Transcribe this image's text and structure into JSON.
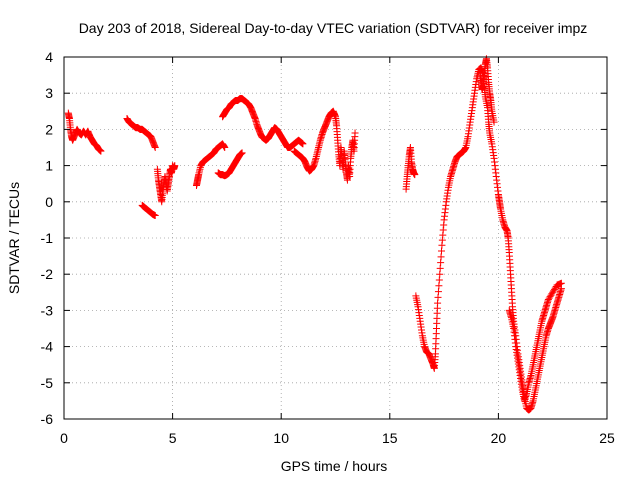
{
  "chart_data": {
    "type": "scatter",
    "title": "Day 203 of 2018, Sidereal Day-to-day VTEC variation (SDTVAR) for receiver impz",
    "xlabel": "GPS time / hours",
    "ylabel": "SDTVAR / TECUs",
    "xlim": [
      0,
      25
    ],
    "ylim": [
      -6,
      4
    ],
    "xticks": [
      "0",
      "5",
      "10",
      "15",
      "20",
      "25"
    ],
    "yticks": [
      "-6",
      "-5",
      "-4",
      "-3",
      "-2",
      "-1",
      "0",
      "1",
      "2",
      "3",
      "4"
    ],
    "grid": true,
    "marker": "+",
    "color": "#ff0000",
    "series": [
      {
        "name": "SDTVAR",
        "segments": [
          [
            [
              0.2,
              2.45
            ],
            [
              0.25,
              2.3
            ],
            [
              0.3,
              2.0
            ],
            [
              0.35,
              1.8
            ],
            [
              0.4,
              1.7
            ],
            [
              0.5,
              1.85
            ],
            [
              0.6,
              2.0
            ],
            [
              0.7,
              1.9
            ],
            [
              0.8,
              1.85
            ],
            [
              0.9,
              1.95
            ],
            [
              1.0,
              1.85
            ],
            [
              1.1,
              1.95
            ],
            [
              1.2,
              1.8
            ],
            [
              1.3,
              1.7
            ],
            [
              1.4,
              1.6
            ],
            [
              1.5,
              1.55
            ],
            [
              1.6,
              1.45
            ],
            [
              1.7,
              1.4
            ]
          ],
          [
            [
              2.9,
              2.3
            ],
            [
              3.0,
              2.2
            ],
            [
              3.1,
              2.15
            ],
            [
              3.2,
              2.1
            ],
            [
              3.3,
              2.05
            ],
            [
              3.4,
              2.05
            ],
            [
              3.5,
              2.0
            ],
            [
              3.6,
              2.0
            ],
            [
              3.7,
              1.95
            ],
            [
              3.8,
              1.9
            ],
            [
              3.9,
              1.85
            ],
            [
              4.0,
              1.8
            ],
            [
              4.1,
              1.65
            ],
            [
              4.2,
              1.5
            ]
          ],
          [
            [
              3.6,
              -0.1
            ],
            [
              3.7,
              -0.15
            ],
            [
              3.8,
              -0.2
            ],
            [
              3.9,
              -0.25
            ],
            [
              4.0,
              -0.3
            ],
            [
              4.1,
              -0.35
            ],
            [
              4.2,
              -0.38
            ]
          ],
          [
            [
              4.3,
              0.9
            ],
            [
              4.35,
              0.6
            ],
            [
              4.4,
              0.4
            ],
            [
              4.45,
              0.2
            ],
            [
              4.5,
              0.0
            ],
            [
              4.55,
              0.3
            ],
            [
              4.6,
              0.5
            ],
            [
              4.65,
              0.7
            ],
            [
              4.7,
              0.5
            ],
            [
              4.75,
              0.3
            ],
            [
              4.8,
              0.5
            ],
            [
              4.85,
              0.7
            ],
            [
              4.9,
              0.9
            ],
            [
              4.95,
              0.8
            ],
            [
              5.0,
              1.0
            ],
            [
              5.05,
              0.9
            ],
            [
              5.1,
              1.0
            ]
          ],
          [
            [
              6.1,
              0.45
            ],
            [
              6.15,
              0.6
            ],
            [
              6.2,
              0.75
            ],
            [
              6.3,
              1.0
            ],
            [
              6.4,
              1.1
            ],
            [
              6.5,
              1.15
            ],
            [
              6.6,
              1.2
            ],
            [
              6.7,
              1.25
            ],
            [
              6.8,
              1.3
            ],
            [
              6.9,
              1.35
            ],
            [
              7.0,
              1.45
            ],
            [
              7.1,
              1.5
            ],
            [
              7.2,
              1.55
            ],
            [
              7.3,
              1.6
            ],
            [
              7.4,
              1.5
            ]
          ],
          [
            [
              7.1,
              0.8
            ],
            [
              7.2,
              0.75
            ],
            [
              7.3,
              0.75
            ],
            [
              7.4,
              0.72
            ],
            [
              7.5,
              0.75
            ],
            [
              7.6,
              0.8
            ],
            [
              7.7,
              0.9
            ],
            [
              7.8,
              1.0
            ],
            [
              7.9,
              1.1
            ],
            [
              8.0,
              1.2
            ],
            [
              8.1,
              1.3
            ],
            [
              8.2,
              1.35
            ]
          ],
          [
            [
              7.3,
              2.35
            ],
            [
              7.4,
              2.45
            ],
            [
              7.5,
              2.55
            ],
            [
              7.6,
              2.6
            ],
            [
              7.7,
              2.7
            ],
            [
              7.8,
              2.75
            ],
            [
              7.9,
              2.8
            ],
            [
              8.0,
              2.8
            ],
            [
              8.1,
              2.85
            ],
            [
              8.2,
              2.85
            ],
            [
              8.3,
              2.8
            ],
            [
              8.4,
              2.75
            ],
            [
              8.5,
              2.7
            ],
            [
              8.6,
              2.6
            ],
            [
              8.7,
              2.45
            ],
            [
              8.8,
              2.3
            ],
            [
              8.9,
              2.1
            ],
            [
              9.0,
              1.95
            ],
            [
              9.1,
              1.8
            ],
            [
              9.2,
              1.75
            ],
            [
              9.3,
              1.7
            ],
            [
              9.4,
              1.75
            ],
            [
              9.5,
              1.85
            ],
            [
              9.6,
              1.95
            ],
            [
              9.7,
              2.05
            ],
            [
              9.8,
              2.0
            ],
            [
              9.9,
              1.9
            ],
            [
              10.0,
              1.8
            ],
            [
              10.1,
              1.7
            ],
            [
              10.2,
              1.6
            ],
            [
              10.3,
              1.5
            ],
            [
              10.4,
              1.5
            ],
            [
              10.5,
              1.55
            ],
            [
              10.6,
              1.6
            ],
            [
              10.7,
              1.65
            ],
            [
              10.8,
              1.7
            ],
            [
              10.9,
              1.65
            ],
            [
              11.0,
              1.6
            ]
          ],
          [
            [
              10.6,
              1.4
            ],
            [
              10.7,
              1.35
            ],
            [
              10.8,
              1.3
            ],
            [
              10.9,
              1.25
            ],
            [
              11.0,
              1.2
            ],
            [
              11.1,
              1.1
            ],
            [
              11.2,
              0.95
            ],
            [
              11.3,
              0.85
            ],
            [
              11.4,
              0.9
            ],
            [
              11.5,
              1.0
            ],
            [
              11.6,
              1.2
            ],
            [
              11.7,
              1.45
            ],
            [
              11.8,
              1.7
            ],
            [
              11.9,
              1.9
            ],
            [
              12.0,
              2.05
            ],
            [
              12.1,
              2.2
            ],
            [
              12.2,
              2.35
            ],
            [
              12.3,
              2.45
            ],
            [
              12.4,
              2.5
            ],
            [
              12.5,
              2.35
            ],
            [
              12.55,
              2.1
            ],
            [
              12.6,
              1.7
            ],
            [
              12.65,
              1.3
            ],
            [
              12.7,
              1.0
            ],
            [
              12.75,
              1.5
            ],
            [
              12.8,
              1.2
            ],
            [
              12.85,
              0.9
            ],
            [
              12.9,
              1.4
            ],
            [
              12.95,
              1.1
            ],
            [
              13.0,
              0.8
            ],
            [
              13.05,
              0.6
            ],
            [
              13.1,
              1.0
            ],
            [
              13.15,
              0.7
            ],
            [
              13.2,
              1.2
            ],
            [
              13.25,
              1.5
            ],
            [
              13.3,
              1.7
            ],
            [
              13.35,
              1.4
            ],
            [
              13.4,
              1.9
            ]
          ],
          [
            [
              15.75,
              0.35
            ],
            [
              15.8,
              0.7
            ],
            [
              15.85,
              1.0
            ],
            [
              15.9,
              1.3
            ],
            [
              15.95,
              1.5
            ],
            [
              16.0,
              1.1
            ],
            [
              16.05,
              0.9
            ],
            [
              16.1,
              0.8
            ],
            [
              16.15,
              0.75
            ]
          ],
          [
            [
              16.2,
              -2.6
            ],
            [
              16.3,
              -2.9
            ],
            [
              16.4,
              -3.3
            ],
            [
              16.5,
              -3.7
            ],
            [
              16.6,
              -4.0
            ],
            [
              16.7,
              -4.15
            ],
            [
              16.8,
              -4.2
            ],
            [
              16.9,
              -4.35
            ],
            [
              17.0,
              -4.5
            ],
            [
              17.05,
              -4.6
            ],
            [
              17.1,
              -4.2
            ],
            [
              17.15,
              -3.5
            ],
            [
              17.2,
              -2.8
            ],
            [
              17.3,
              -2.0
            ],
            [
              17.4,
              -1.2
            ],
            [
              17.5,
              -0.5
            ],
            [
              17.6,
              0.0
            ],
            [
              17.7,
              0.4
            ],
            [
              17.8,
              0.7
            ],
            [
              17.9,
              0.9
            ],
            [
              18.0,
              1.1
            ],
            [
              18.1,
              1.25
            ],
            [
              18.2,
              1.3
            ],
            [
              18.3,
              1.35
            ],
            [
              18.4,
              1.4
            ],
            [
              18.5,
              1.5
            ],
            [
              18.6,
              1.8
            ],
            [
              18.7,
              2.2
            ],
            [
              18.8,
              2.6
            ],
            [
              18.9,
              3.0
            ],
            [
              19.0,
              3.4
            ],
            [
              19.1,
              3.65
            ],
            [
              19.2,
              3.7
            ],
            [
              19.3,
              3.55
            ],
            [
              19.35,
              3.2
            ],
            [
              19.4,
              2.9
            ],
            [
              19.5,
              2.6
            ],
            [
              19.55,
              2.2
            ],
            [
              19.6,
              1.9
            ],
            [
              19.7,
              1.6
            ],
            [
              19.8,
              1.2
            ],
            [
              19.9,
              0.7
            ],
            [
              20.0,
              0.2
            ],
            [
              20.05,
              0.0
            ],
            [
              20.1,
              -0.2
            ],
            [
              20.2,
              -0.5
            ],
            [
              20.3,
              -0.7
            ],
            [
              20.4,
              -0.8
            ],
            [
              20.45,
              -1.0
            ],
            [
              20.5,
              -1.4
            ],
            [
              20.55,
              -1.9
            ],
            [
              20.6,
              -2.4
            ],
            [
              20.65,
              -2.9
            ],
            [
              20.7,
              -3.3
            ],
            [
              20.8,
              -3.7
            ],
            [
              20.9,
              -4.2
            ],
            [
              21.0,
              -4.6
            ],
            [
              21.1,
              -5.0
            ],
            [
              21.2,
              -5.4
            ],
            [
              21.3,
              -5.7
            ],
            [
              21.4,
              -5.75
            ],
            [
              21.5,
              -5.7
            ],
            [
              21.6,
              -5.5
            ],
            [
              21.7,
              -5.2
            ],
            [
              21.8,
              -4.9
            ],
            [
              21.9,
              -4.6
            ],
            [
              22.0,
              -4.3
            ],
            [
              22.1,
              -4.0
            ],
            [
              22.2,
              -3.7
            ],
            [
              22.3,
              -3.5
            ],
            [
              22.4,
              -3.35
            ],
            [
              22.5,
              -3.2
            ],
            [
              22.6,
              -3.0
            ],
            [
              22.7,
              -2.8
            ],
            [
              22.8,
              -2.6
            ],
            [
              22.9,
              -2.4
            ]
          ],
          [
            [
              19.15,
              3.55
            ],
            [
              19.2,
              3.3
            ],
            [
              19.25,
              3.1
            ],
            [
              19.3,
              3.2
            ],
            [
              19.35,
              3.5
            ],
            [
              19.4,
              3.8
            ],
            [
              19.45,
              3.95
            ],
            [
              19.5,
              3.7
            ],
            [
              19.55,
              3.3
            ],
            [
              19.6,
              3.0
            ],
            [
              19.65,
              2.8
            ],
            [
              19.7,
              2.5
            ],
            [
              19.8,
              2.2
            ]
          ],
          [
            [
              20.5,
              -3.0
            ],
            [
              20.6,
              -3.2
            ],
            [
              20.7,
              -3.5
            ],
            [
              20.8,
              -4.0
            ],
            [
              20.9,
              -4.4
            ],
            [
              21.0,
              -4.8
            ],
            [
              21.1,
              -5.2
            ],
            [
              21.2,
              -5.5
            ],
            [
              21.3,
              -5.3
            ],
            [
              21.4,
              -5.0
            ],
            [
              21.5,
              -4.8
            ],
            [
              21.6,
              -4.5
            ],
            [
              21.7,
              -4.2
            ],
            [
              21.8,
              -3.9
            ],
            [
              21.9,
              -3.6
            ],
            [
              22.0,
              -3.3
            ],
            [
              22.1,
              -3.1
            ],
            [
              22.2,
              -2.9
            ],
            [
              22.3,
              -2.7
            ],
            [
              22.5,
              -2.5
            ],
            [
              22.7,
              -2.3
            ],
            [
              22.9,
              -2.25
            ]
          ]
        ]
      }
    ]
  }
}
